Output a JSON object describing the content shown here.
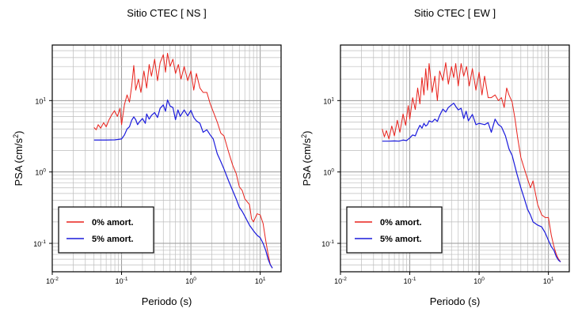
{
  "chart_data": [
    {
      "type": "line",
      "title": "Sitio CTEC [ NS ]",
      "xlabel": "Periodo (s)",
      "ylabel_base": "PSA (cm/s",
      "ylabel_sup": "2",
      "ylabel_end": ")",
      "xscale": "log",
      "yscale": "log",
      "xlim": [
        0.01,
        20
      ],
      "ylim": [
        0.04,
        60
      ],
      "grid": true,
      "legend_position": "bottom-left",
      "x_ticks": [
        {
          "base": "10",
          "exp": "-2",
          "value": 0.01
        },
        {
          "base": "10",
          "exp": "-1",
          "value": 0.1
        },
        {
          "base": "10",
          "exp": "0",
          "value": 1
        },
        {
          "base": "10",
          "exp": "1",
          "value": 10
        }
      ],
      "y_ticks": [
        {
          "base": "10",
          "exp": "-1",
          "value": 0.1
        },
        {
          "base": "10",
          "exp": "0",
          "value": 1
        },
        {
          "base": "10",
          "exp": "1",
          "value": 10
        }
      ],
      "series": [
        {
          "name": "0% amort.",
          "color": "#e8211b",
          "points": [
            [
              0.04,
              4.2
            ],
            [
              0.043,
              3.9
            ],
            [
              0.046,
              4.6
            ],
            [
              0.05,
              4.1
            ],
            [
              0.055,
              4.9
            ],
            [
              0.06,
              4.3
            ],
            [
              0.066,
              5.4
            ],
            [
              0.072,
              6.3
            ],
            [
              0.079,
              7.2
            ],
            [
              0.087,
              6.0
            ],
            [
              0.095,
              7.8
            ],
            [
              0.1,
              4.6
            ],
            [
              0.11,
              8.8
            ],
            [
              0.12,
              12
            ],
            [
              0.13,
              9.5
            ],
            [
              0.14,
              16
            ],
            [
              0.15,
              31
            ],
            [
              0.16,
              14
            ],
            [
              0.175,
              20
            ],
            [
              0.19,
              13
            ],
            [
              0.21,
              26
            ],
            [
              0.23,
              15
            ],
            [
              0.25,
              32
            ],
            [
              0.27,
              22
            ],
            [
              0.3,
              38
            ],
            [
              0.33,
              19
            ],
            [
              0.36,
              34
            ],
            [
              0.4,
              44
            ],
            [
              0.43,
              25
            ],
            [
              0.46,
              46
            ],
            [
              0.5,
              30
            ],
            [
              0.55,
              38
            ],
            [
              0.6,
              24
            ],
            [
              0.66,
              32
            ],
            [
              0.72,
              20
            ],
            [
              0.8,
              30
            ],
            [
              0.9,
              19
            ],
            [
              1.0,
              26
            ],
            [
              1.1,
              14
            ],
            [
              1.2,
              24
            ],
            [
              1.35,
              15
            ],
            [
              1.5,
              13
            ],
            [
              1.7,
              13
            ],
            [
              1.9,
              9
            ],
            [
              2.1,
              7
            ],
            [
              2.4,
              5
            ],
            [
              2.7,
              3.5
            ],
            [
              3.0,
              3.2
            ],
            [
              3.5,
              1.9
            ],
            [
              4.0,
              1.25
            ],
            [
              4.5,
              0.95
            ],
            [
              5.0,
              0.62
            ],
            [
              5.5,
              0.55
            ],
            [
              6.0,
              0.42
            ],
            [
              7.0,
              0.35
            ],
            [
              7.5,
              0.22
            ],
            [
              8.0,
              0.2
            ],
            [
              9.0,
              0.26
            ],
            [
              10.0,
              0.25
            ],
            [
              11.0,
              0.19
            ],
            [
              12.0,
              0.11
            ],
            [
              13.0,
              0.07
            ],
            [
              14.0,
              0.05
            ],
            [
              15.0,
              0.045
            ]
          ]
        },
        {
          "name": "5% amort.",
          "color": "#1a1adc",
          "points": [
            [
              0.04,
              2.8
            ],
            [
              0.05,
              2.8
            ],
            [
              0.06,
              2.8
            ],
            [
              0.08,
              2.82
            ],
            [
              0.1,
              2.9
            ],
            [
              0.11,
              3.3
            ],
            [
              0.12,
              4.0
            ],
            [
              0.13,
              4.3
            ],
            [
              0.14,
              5.3
            ],
            [
              0.15,
              5.9
            ],
            [
              0.16,
              5.4
            ],
            [
              0.17,
              4.6
            ],
            [
              0.18,
              5.0
            ],
            [
              0.2,
              5.6
            ],
            [
              0.22,
              4.8
            ],
            [
              0.23,
              6.5
            ],
            [
              0.25,
              5.5
            ],
            [
              0.27,
              6.2
            ],
            [
              0.3,
              6.8
            ],
            [
              0.33,
              5.8
            ],
            [
              0.36,
              7.8
            ],
            [
              0.4,
              8.7
            ],
            [
              0.43,
              7.1
            ],
            [
              0.46,
              10.2
            ],
            [
              0.5,
              8.4
            ],
            [
              0.55,
              8.0
            ],
            [
              0.6,
              5.4
            ],
            [
              0.65,
              7.4
            ],
            [
              0.7,
              6.0
            ],
            [
              0.8,
              7.4
            ],
            [
              0.9,
              6.1
            ],
            [
              1.0,
              7.3
            ],
            [
              1.1,
              5.8
            ],
            [
              1.2,
              5.2
            ],
            [
              1.35,
              4.8
            ],
            [
              1.5,
              3.6
            ],
            [
              1.7,
              3.9
            ],
            [
              1.9,
              3.3
            ],
            [
              2.1,
              2.9
            ],
            [
              2.4,
              1.8
            ],
            [
              2.7,
              1.4
            ],
            [
              3.0,
              1.1
            ],
            [
              3.5,
              0.75
            ],
            [
              4.0,
              0.55
            ],
            [
              4.5,
              0.42
            ],
            [
              5.0,
              0.32
            ],
            [
              5.5,
              0.28
            ],
            [
              6.0,
              0.24
            ],
            [
              7.0,
              0.18
            ],
            [
              8.0,
              0.15
            ],
            [
              9.0,
              0.13
            ],
            [
              10.0,
              0.12
            ],
            [
              11.0,
              0.1
            ],
            [
              12.0,
              0.08
            ],
            [
              13.0,
              0.06
            ],
            [
              14.0,
              0.05
            ],
            [
              15.0,
              0.045
            ]
          ]
        }
      ]
    },
    {
      "type": "line",
      "title": "Sitio CTEC [ EW ]",
      "xlabel": "Periodo (s)",
      "ylabel_base": "PSA (cm/s",
      "ylabel_sup": "2",
      "ylabel_end": ")",
      "xscale": "log",
      "yscale": "log",
      "xlim": [
        0.01,
        20
      ],
      "ylim": [
        0.04,
        60
      ],
      "grid": true,
      "legend_position": "bottom-left",
      "x_ticks": [
        {
          "base": "10",
          "exp": "-2",
          "value": 0.01
        },
        {
          "base": "10",
          "exp": "-1",
          "value": 0.1
        },
        {
          "base": "10",
          "exp": "0",
          "value": 1
        },
        {
          "base": "10",
          "exp": "1",
          "value": 10
        }
      ],
      "y_ticks": [
        {
          "base": "10",
          "exp": "-1",
          "value": 0.1
        },
        {
          "base": "10",
          "exp": "0",
          "value": 1
        },
        {
          "base": "10",
          "exp": "1",
          "value": 10
        }
      ],
      "series": [
        {
          "name": "0% amort.",
          "color": "#e8211b",
          "points": [
            [
              0.04,
              4.0
            ],
            [
              0.043,
              3.1
            ],
            [
              0.046,
              3.8
            ],
            [
              0.05,
              2.9
            ],
            [
              0.055,
              4.4
            ],
            [
              0.06,
              3.2
            ],
            [
              0.066,
              5.3
            ],
            [
              0.072,
              3.6
            ],
            [
              0.08,
              6.5
            ],
            [
              0.087,
              4.5
            ],
            [
              0.095,
              8.5
            ],
            [
              0.1,
              5.5
            ],
            [
              0.11,
              11
            ],
            [
              0.12,
              7.5
            ],
            [
              0.13,
              15
            ],
            [
              0.14,
              9
            ],
            [
              0.15,
              21
            ],
            [
              0.16,
              12
            ],
            [
              0.17,
              28
            ],
            [
              0.18,
              14
            ],
            [
              0.19,
              33
            ],
            [
              0.21,
              13
            ],
            [
              0.23,
              22
            ],
            [
              0.25,
              10
            ],
            [
              0.27,
              26
            ],
            [
              0.3,
              19
            ],
            [
              0.33,
              34
            ],
            [
              0.36,
              17
            ],
            [
              0.4,
              30
            ],
            [
              0.43,
              21
            ],
            [
              0.46,
              33
            ],
            [
              0.5,
              16
            ],
            [
              0.55,
              33
            ],
            [
              0.6,
              22
            ],
            [
              0.66,
              30
            ],
            [
              0.72,
              16
            ],
            [
              0.8,
              28
            ],
            [
              0.9,
              14
            ],
            [
              1.0,
              25
            ],
            [
              1.1,
              12
            ],
            [
              1.2,
              22
            ],
            [
              1.35,
              11
            ],
            [
              1.5,
              11
            ],
            [
              1.7,
              12
            ],
            [
              1.9,
              10
            ],
            [
              2.1,
              11
            ],
            [
              2.3,
              8
            ],
            [
              2.5,
              15
            ],
            [
              2.7,
              12
            ],
            [
              3.0,
              9.5
            ],
            [
              3.3,
              5.5
            ],
            [
              3.6,
              3.0
            ],
            [
              4.0,
              1.6
            ],
            [
              4.5,
              1.1
            ],
            [
              5.0,
              0.8
            ],
            [
              5.5,
              0.6
            ],
            [
              6.0,
              0.75
            ],
            [
              6.5,
              0.5
            ],
            [
              7.0,
              0.35
            ],
            [
              8.0,
              0.25
            ],
            [
              9.0,
              0.23
            ],
            [
              10.0,
              0.23
            ],
            [
              11.0,
              0.13
            ],
            [
              12.0,
              0.09
            ],
            [
              13.0,
              0.07
            ],
            [
              14.0,
              0.06
            ],
            [
              15.0,
              0.055
            ]
          ]
        },
        {
          "name": "5% amort.",
          "color": "#1a1adc",
          "points": [
            [
              0.04,
              2.7
            ],
            [
              0.05,
              2.7
            ],
            [
              0.06,
              2.72
            ],
            [
              0.07,
              2.7
            ],
            [
              0.08,
              2.8
            ],
            [
              0.09,
              2.75
            ],
            [
              0.1,
              3.0
            ],
            [
              0.11,
              3.3
            ],
            [
              0.12,
              3.2
            ],
            [
              0.13,
              3.9
            ],
            [
              0.14,
              4.5
            ],
            [
              0.15,
              4.1
            ],
            [
              0.16,
              4.8
            ],
            [
              0.17,
              4.4
            ],
            [
              0.18,
              4.6
            ],
            [
              0.19,
              5.2
            ],
            [
              0.21,
              5.0
            ],
            [
              0.23,
              5.5
            ],
            [
              0.25,
              5.1
            ],
            [
              0.27,
              6.2
            ],
            [
              0.3,
              7.6
            ],
            [
              0.33,
              6.9
            ],
            [
              0.36,
              8.0
            ],
            [
              0.4,
              8.7
            ],
            [
              0.43,
              9.2
            ],
            [
              0.46,
              8.3
            ],
            [
              0.5,
              7.4
            ],
            [
              0.55,
              7.8
            ],
            [
              0.6,
              5.6
            ],
            [
              0.65,
              7.1
            ],
            [
              0.7,
              5.2
            ],
            [
              0.8,
              6.4
            ],
            [
              0.9,
              4.6
            ],
            [
              1.0,
              4.8
            ],
            [
              1.1,
              4.7
            ],
            [
              1.2,
              4.6
            ],
            [
              1.35,
              4.9
            ],
            [
              1.5,
              3.6
            ],
            [
              1.7,
              5.5
            ],
            [
              1.9,
              4.6
            ],
            [
              2.1,
              4.3
            ],
            [
              2.4,
              3.2
            ],
            [
              2.7,
              2.1
            ],
            [
              3.0,
              1.7
            ],
            [
              3.5,
              0.95
            ],
            [
              4.0,
              0.6
            ],
            [
              4.5,
              0.42
            ],
            [
              5.0,
              0.3
            ],
            [
              5.5,
              0.25
            ],
            [
              6.0,
              0.2
            ],
            [
              7.0,
              0.18
            ],
            [
              8.0,
              0.17
            ],
            [
              9.0,
              0.14
            ],
            [
              10.0,
              0.11
            ],
            [
              11.0,
              0.09
            ],
            [
              12.0,
              0.08
            ],
            [
              13.0,
              0.065
            ],
            [
              14.0,
              0.058
            ],
            [
              15.0,
              0.055
            ]
          ]
        }
      ]
    }
  ]
}
